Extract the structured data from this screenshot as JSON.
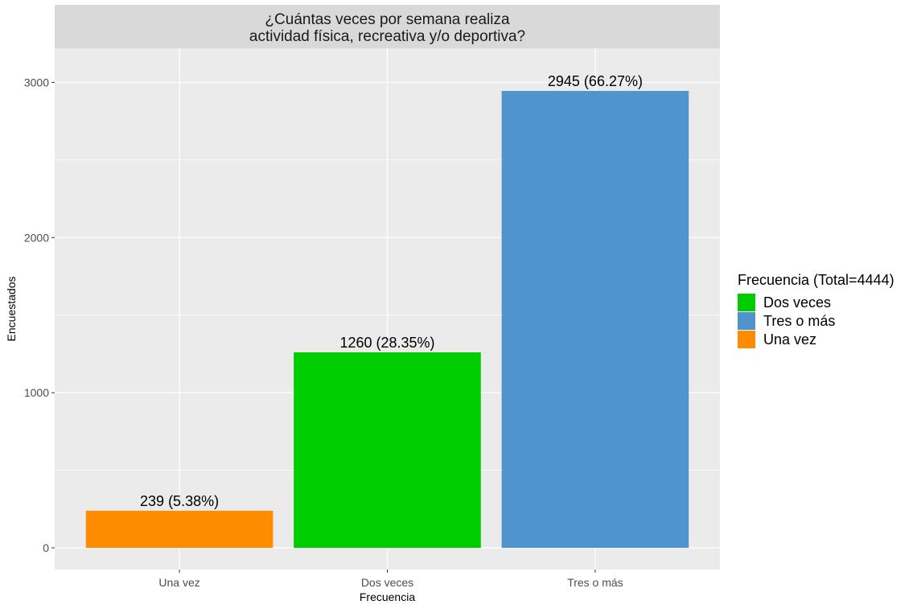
{
  "chart_data": {
    "type": "bar",
    "title": "¿Cuántas veces por semana realiza actividad física, recreativa y/o deportiva?",
    "title_lines": [
      "¿Cuántas veces por semana realiza",
      "actividad física, recreativa y/o deportiva?"
    ],
    "xlabel": "Frecuencia",
    "ylabel": "Encuestados",
    "categories": [
      "Una vez",
      "Dos veces",
      "Tres o más"
    ],
    "values": [
      239,
      1260,
      2945
    ],
    "data_labels": [
      "239 (5.38%)",
      "1260 (28.35%)",
      "2945 (66.27%)"
    ],
    "bar_colors": [
      "#FF8C00",
      "#00CD00",
      "#4F94CD"
    ],
    "ylim": [
      -140,
      3220
    ],
    "yticks": [
      0,
      1000,
      2000,
      3000
    ],
    "ytick_labels": [
      "0",
      "1000",
      "2000",
      "3000"
    ],
    "grid": true,
    "panel_background": "#EBEBEB",
    "strip_background": "#D9D9D9",
    "legend": {
      "title": "Frecuencia (Total=4444)",
      "position": "right",
      "entries": [
        {
          "label": "Dos veces",
          "color": "#00CD00"
        },
        {
          "label": "Tres o más",
          "color": "#4F94CD"
        },
        {
          "label": "Una vez",
          "color": "#FF8C00"
        }
      ]
    }
  }
}
